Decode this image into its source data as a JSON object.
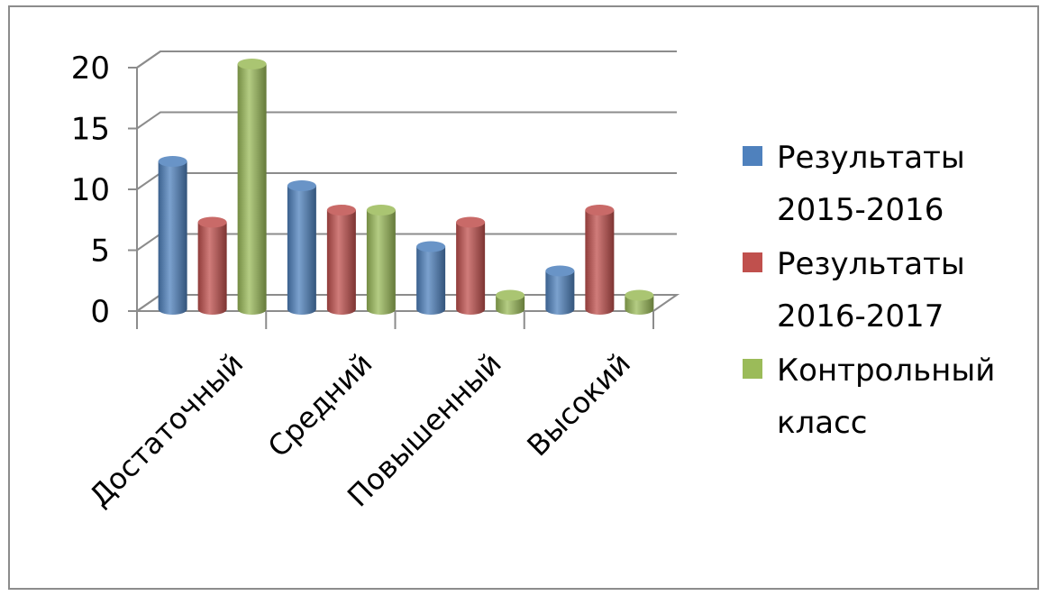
{
  "chart_data": {
    "type": "bar",
    "title": "",
    "xlabel": "",
    "ylabel": "",
    "ylim": [
      0,
      20
    ],
    "yticks": [
      0,
      5,
      10,
      15,
      20
    ],
    "categories": [
      "Достаточный",
      "Средний",
      "Повышенный",
      "Высокий"
    ],
    "series": [
      {
        "name": "Результаты 2015-2016",
        "name_lines": [
          "Результаты",
          "2015-2016"
        ],
        "color": "#4f81bd",
        "values": [
          12,
          10,
          5,
          3
        ]
      },
      {
        "name": "Результаты 2016-2017",
        "name_lines": [
          "Результаты",
          "2016-2017"
        ],
        "color": "#c0504d",
        "values": [
          7,
          8,
          7,
          8
        ]
      },
      {
        "name": "Контрольный класс",
        "name_lines": [
          "Контрольный",
          "класс"
        ],
        "color": "#9bbb59",
        "values": [
          20,
          8,
          1,
          1
        ]
      }
    ],
    "grid": true,
    "legend": "right",
    "style": "3d-cylinder"
  }
}
